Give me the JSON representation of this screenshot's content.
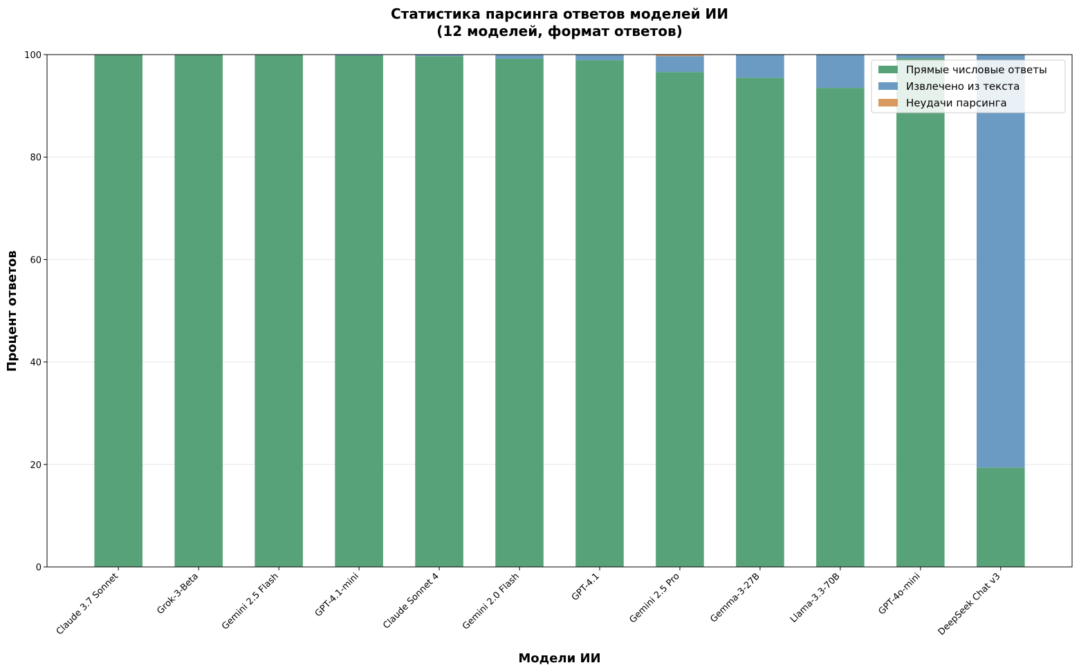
{
  "chart_data": {
    "type": "stacked_bar",
    "title": [
      "Статистика парсинга ответов моделей ИИ",
      "(12 моделей, формат ответов)"
    ],
    "xlabel": "Модели ИИ",
    "ylabel": "Процент ответов",
    "categories": [
      "Claude 3.7 Sonnet",
      "Grok-3-Beta",
      "Gemini 2.5 Flash",
      "GPT-4.1-mini",
      "Claude Sonnet 4",
      "Gemini 2.0 Flash",
      "GPT-4.1",
      "Gemini 2.5 Pro",
      "Gemma-3-27B",
      "Llama-3.3-70B",
      "GPT-4o-mini",
      "DeepSeek Chat v3"
    ],
    "series": [
      {
        "name": "Прямые числовые ответы",
        "color": "#58a279",
        "values": [
          100,
          100,
          100,
          99.8,
          99.7,
          99.2,
          98.9,
          96.6,
          95.5,
          93.5,
          99.3,
          19.4
        ]
      },
      {
        "name": "Извлечено из текста",
        "color": "#6b9bc3",
        "values": [
          0,
          0,
          0,
          0.2,
          0.3,
          0.8,
          1.1,
          3.1,
          4.5,
          6.5,
          0.7,
          80.6
        ]
      },
      {
        "name": "Неудачи парсинга",
        "color": "#d89a5f",
        "values": [
          0,
          0,
          0,
          0,
          0,
          0,
          0,
          0.3,
          0,
          0,
          0,
          0
        ]
      }
    ],
    "ylim": [
      0,
      100
    ],
    "yticks": [
      0,
      20,
      40,
      60,
      80,
      100
    ],
    "grid": true,
    "legend": "upper right"
  }
}
